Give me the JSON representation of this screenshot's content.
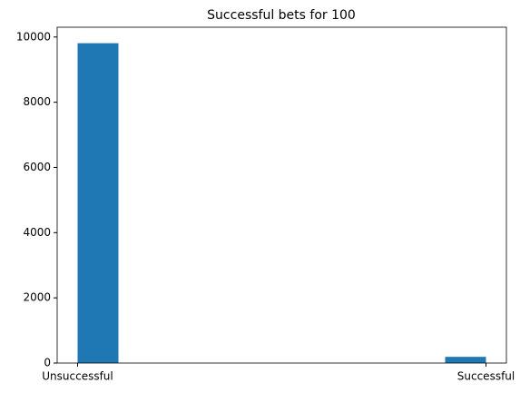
{
  "chart_data": {
    "type": "histogram",
    "title": "Successful bets for 100",
    "bins": [
      0,
      0.1,
      0.2,
      0.3,
      0.4,
      0.5,
      0.6,
      0.7,
      0.8,
      0.9,
      1
    ],
    "values": [
      9810,
      0,
      0,
      0,
      0,
      0,
      0,
      0,
      0,
      190
    ],
    "color": "#1f77b4",
    "xlim": [
      -0.05,
      1.05
    ],
    "xticks": [
      {
        "value": 0,
        "label": "Unsuccessful"
      },
      {
        "value": 1,
        "label": "Successful"
      }
    ],
    "ylim": [
      0,
      10300
    ],
    "yticks": [
      0,
      2000,
      4000,
      6000,
      8000,
      10000
    ]
  }
}
